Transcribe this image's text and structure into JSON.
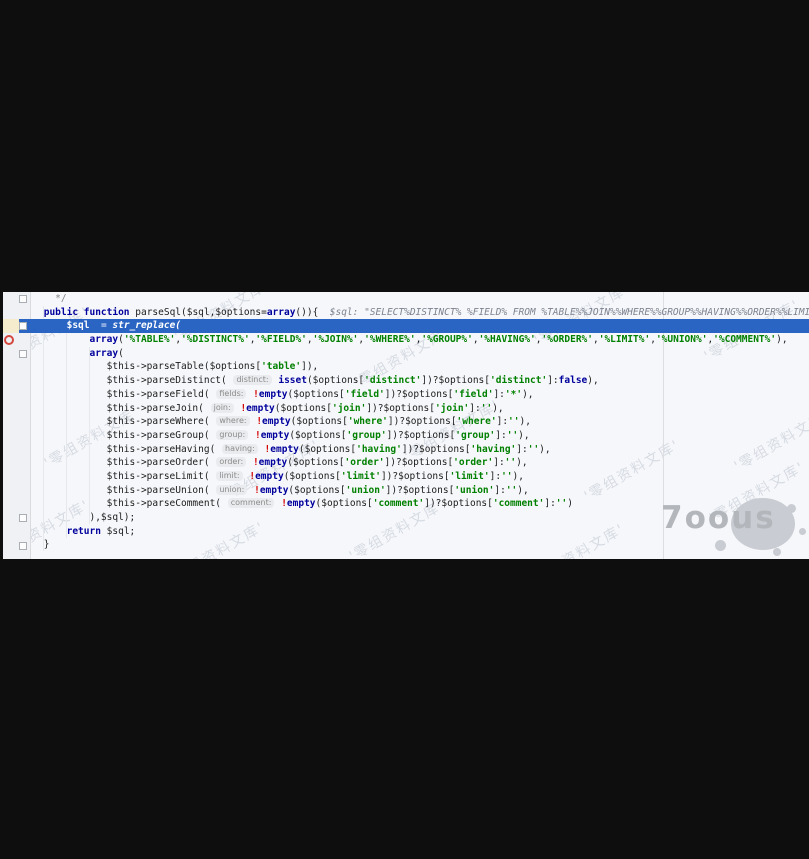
{
  "watermark": {
    "text": "'零组资料文库'",
    "logo_text": "7oous"
  },
  "editor": {
    "background": "#f6f7fa",
    "gutter_background": "#f0f1f4",
    "execution_line_color": "#2a65c3",
    "execution_gutter_color": "#f5ecce",
    "breakpoint_color": "#d4493f",
    "keyword_color": "#00009c",
    "string_color": "#008000",
    "debug_value_color": "#7d828f",
    "lines": [
      {
        "cls": "",
        "t": [
          [
            "   */",
            "c"
          ]
        ]
      },
      {
        "cls": "",
        "t": [
          [
            " ",
            "p"
          ],
          [
            "public function",
            "k"
          ],
          [
            " parseSql($sql,$options=",
            "p"
          ],
          [
            "array",
            "k"
          ],
          [
            "()){  ",
            "p"
          ],
          [
            "$sql: \"SELECT%DISTINCT% %FIELD% FROM %TABLE%%JOIN%%WHERE%%GROUP%%HAVING%%ORDER%%LIMIT% %UNION%%COMMENT%\"",
            "d"
          ]
        ]
      },
      {
        "cls": "exec",
        "t": [
          [
            "     ",
            "w"
          ],
          [
            "$sql",
            "wb"
          ],
          [
            "  = ",
            "w"
          ],
          [
            "str_replace(",
            "wi"
          ]
        ]
      },
      {
        "cls": "",
        "t": [
          [
            "         ",
            "p"
          ],
          [
            "array",
            "k"
          ],
          [
            "(",
            "p"
          ],
          [
            "'%TABLE%'",
            "s"
          ],
          [
            ",",
            "p"
          ],
          [
            "'%DISTINCT%'",
            "s"
          ],
          [
            ",",
            "p"
          ],
          [
            "'%FIELD%'",
            "s"
          ],
          [
            ",",
            "p"
          ],
          [
            "'%JOIN%'",
            "s"
          ],
          [
            ",",
            "p"
          ],
          [
            "'%WHERE%'",
            "s"
          ],
          [
            ",",
            "p"
          ],
          [
            "'%GROUP%'",
            "s"
          ],
          [
            ",",
            "p"
          ],
          [
            "'%HAVING%'",
            "s"
          ],
          [
            ",",
            "p"
          ],
          [
            "'%ORDER%'",
            "s"
          ],
          [
            ",",
            "p"
          ],
          [
            "'%LIMIT%'",
            "s"
          ],
          [
            ",",
            "p"
          ],
          [
            "'%UNION%'",
            "s"
          ],
          [
            ",",
            "p"
          ],
          [
            "'%COMMENT%'",
            "s"
          ],
          [
            "),",
            "p"
          ]
        ]
      },
      {
        "cls": "",
        "t": [
          [
            "         ",
            "p"
          ],
          [
            "array",
            "k"
          ],
          [
            "(",
            "p"
          ]
        ]
      },
      {
        "cls": "",
        "t": [
          [
            "            $this->parseTable($options[",
            "p"
          ],
          [
            "'table'",
            "s"
          ],
          [
            "]),",
            "p"
          ]
        ]
      },
      {
        "cls": "",
        "t": [
          [
            "            $this->parseDistinct( ",
            "p"
          ],
          [
            "distinct:",
            "h"
          ],
          [
            " ",
            "p"
          ],
          [
            "isset",
            "k"
          ],
          [
            "($options[",
            "p"
          ],
          [
            "'distinct'",
            "s"
          ],
          [
            "])?$options[",
            "p"
          ],
          [
            "'distinct'",
            "s"
          ],
          [
            "]:",
            "p"
          ],
          [
            "false",
            "k"
          ],
          [
            "),",
            "p"
          ]
        ]
      },
      {
        "cls": "",
        "t": [
          [
            "            $this->parseField( ",
            "p"
          ],
          [
            "fields:",
            "h"
          ],
          [
            " ",
            "p"
          ],
          [
            "!",
            "x"
          ],
          [
            "empty",
            "k"
          ],
          [
            "($options[",
            "p"
          ],
          [
            "'field'",
            "s"
          ],
          [
            "])?$options[",
            "p"
          ],
          [
            "'field'",
            "s"
          ],
          [
            "]:",
            "p"
          ],
          [
            "'*'",
            "s"
          ],
          [
            "),",
            "p"
          ]
        ]
      },
      {
        "cls": "",
        "t": [
          [
            "            $this->parseJoin( ",
            "p"
          ],
          [
            "join:",
            "h"
          ],
          [
            " ",
            "p"
          ],
          [
            "!",
            "x"
          ],
          [
            "empty",
            "k"
          ],
          [
            "($options[",
            "p"
          ],
          [
            "'join'",
            "s"
          ],
          [
            "])?$options[",
            "p"
          ],
          [
            "'join'",
            "s"
          ],
          [
            "]:",
            "p"
          ],
          [
            "''",
            "s"
          ],
          [
            "),",
            "p"
          ]
        ]
      },
      {
        "cls": "",
        "t": [
          [
            "            $this->parseWhere( ",
            "p"
          ],
          [
            "where:",
            "h"
          ],
          [
            " ",
            "p"
          ],
          [
            "!",
            "x"
          ],
          [
            "empty",
            "k"
          ],
          [
            "($options[",
            "p"
          ],
          [
            "'where'",
            "s"
          ],
          [
            "])?$options[",
            "p"
          ],
          [
            "'where'",
            "s"
          ],
          [
            "]:",
            "p"
          ],
          [
            "''",
            "s"
          ],
          [
            "),",
            "p"
          ]
        ]
      },
      {
        "cls": "",
        "t": [
          [
            "            $this->parseGroup( ",
            "p"
          ],
          [
            "group:",
            "h"
          ],
          [
            " ",
            "p"
          ],
          [
            "!",
            "x"
          ],
          [
            "empty",
            "k"
          ],
          [
            "($options[",
            "p"
          ],
          [
            "'group'",
            "s"
          ],
          [
            "])?$options[",
            "p"
          ],
          [
            "'group'",
            "s"
          ],
          [
            "]:",
            "p"
          ],
          [
            "''",
            "s"
          ],
          [
            "),",
            "p"
          ]
        ]
      },
      {
        "cls": "",
        "t": [
          [
            "            $this->parseHaving( ",
            "p"
          ],
          [
            "having:",
            "h"
          ],
          [
            " ",
            "p"
          ],
          [
            "!",
            "x"
          ],
          [
            "empty",
            "k"
          ],
          [
            "($options[",
            "p"
          ],
          [
            "'having'",
            "s"
          ],
          [
            "])?$options[",
            "p"
          ],
          [
            "'having'",
            "s"
          ],
          [
            "]:",
            "p"
          ],
          [
            "''",
            "s"
          ],
          [
            "),",
            "p"
          ]
        ]
      },
      {
        "cls": "",
        "t": [
          [
            "            $this->parseOrder( ",
            "p"
          ],
          [
            "order:",
            "h"
          ],
          [
            " ",
            "p"
          ],
          [
            "!",
            "x"
          ],
          [
            "empty",
            "k"
          ],
          [
            "($options[",
            "p"
          ],
          [
            "'order'",
            "s"
          ],
          [
            "])?$options[",
            "p"
          ],
          [
            "'order'",
            "s"
          ],
          [
            "]:",
            "p"
          ],
          [
            "''",
            "s"
          ],
          [
            "),",
            "p"
          ]
        ]
      },
      {
        "cls": "",
        "t": [
          [
            "            $this->parseLimit( ",
            "p"
          ],
          [
            "limit:",
            "h"
          ],
          [
            " ",
            "p"
          ],
          [
            "!",
            "x"
          ],
          [
            "empty",
            "k"
          ],
          [
            "($options[",
            "p"
          ],
          [
            "'limit'",
            "s"
          ],
          [
            "])?$options[",
            "p"
          ],
          [
            "'limit'",
            "s"
          ],
          [
            "]:",
            "p"
          ],
          [
            "''",
            "s"
          ],
          [
            "),",
            "p"
          ]
        ]
      },
      {
        "cls": "",
        "t": [
          [
            "            $this->parseUnion( ",
            "p"
          ],
          [
            "union:",
            "h"
          ],
          [
            " ",
            "p"
          ],
          [
            "!",
            "x"
          ],
          [
            "empty",
            "k"
          ],
          [
            "($options[",
            "p"
          ],
          [
            "'union'",
            "s"
          ],
          [
            "])?$options[",
            "p"
          ],
          [
            "'union'",
            "s"
          ],
          [
            "]:",
            "p"
          ],
          [
            "''",
            "s"
          ],
          [
            "),",
            "p"
          ]
        ]
      },
      {
        "cls": "",
        "t": [
          [
            "            $this->parseComment( ",
            "p"
          ],
          [
            "comment:",
            "h"
          ],
          [
            " ",
            "p"
          ],
          [
            "!",
            "x"
          ],
          [
            "empty",
            "k"
          ],
          [
            "($options[",
            "p"
          ],
          [
            "'comment'",
            "s"
          ],
          [
            "])?$options[",
            "p"
          ],
          [
            "'comment'",
            "s"
          ],
          [
            "]:",
            "p"
          ],
          [
            "''",
            "s"
          ],
          [
            ")",
            "p"
          ]
        ]
      },
      {
        "cls": "",
        "t": [
          [
            "         ),$sql);",
            "p"
          ]
        ]
      },
      {
        "cls": "",
        "t": [
          [
            "     ",
            "p"
          ],
          [
            "return",
            "k"
          ],
          [
            " $sql;",
            "p"
          ]
        ]
      },
      {
        "cls": "",
        "t": [
          [
            " }",
            "p"
          ]
        ]
      }
    ]
  }
}
